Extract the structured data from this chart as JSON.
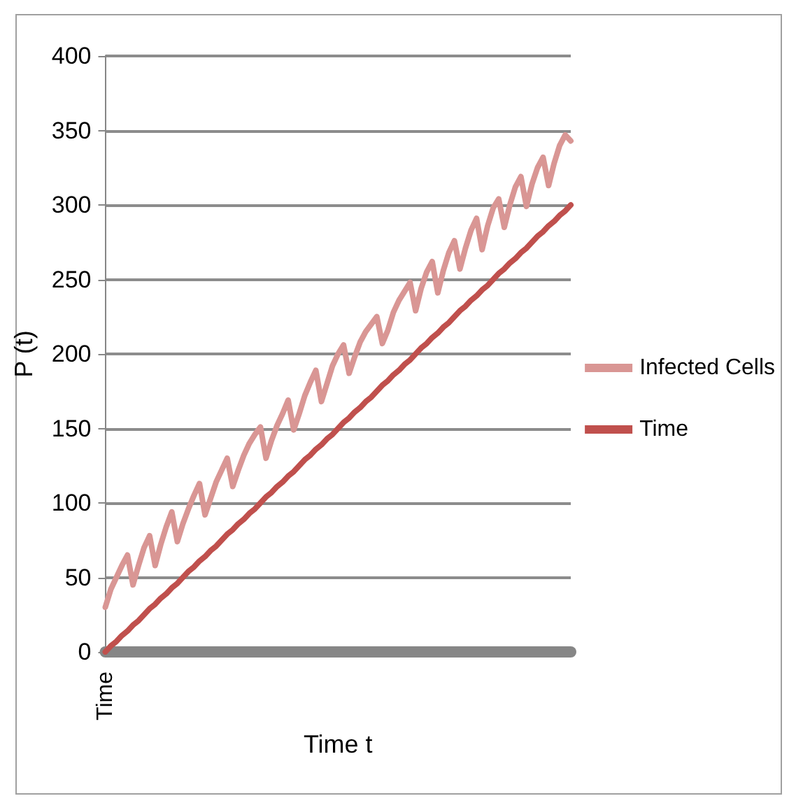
{
  "chart_data": {
    "type": "line",
    "xlabel": "Time t",
    "ylabel": "P (t)",
    "categories": [
      "Time",
      null,
      null,
      null,
      null,
      null,
      null,
      null,
      null,
      null,
      null,
      null,
      null,
      null,
      null,
      null,
      null,
      null,
      null,
      null,
      null,
      null,
      null,
      null,
      null,
      null,
      null,
      null,
      null,
      null,
      null,
      null,
      null,
      null,
      null,
      null,
      null,
      null,
      null,
      null,
      null,
      null,
      null,
      null,
      null,
      null,
      null,
      null,
      null,
      null,
      null,
      null,
      null,
      null,
      null,
      null,
      null,
      null,
      null,
      null,
      null,
      null,
      null,
      null,
      null,
      null,
      null,
      null,
      null,
      null,
      null,
      null,
      null,
      null,
      null,
      null,
      null,
      null,
      null,
      null,
      null,
      null,
      null,
      null,
      null
    ],
    "series": [
      {
        "name": "Infected Cells",
        "color": "#d99694",
        "values": [
          30,
          42,
          50,
          58,
          65,
          45,
          58,
          70,
          78,
          58,
          72,
          84,
          94,
          74,
          86,
          96,
          105,
          113,
          92,
          103,
          114,
          122,
          130,
          111,
          122,
          132,
          140,
          146,
          151,
          130,
          142,
          152,
          160,
          169,
          149,
          160,
          172,
          181,
          189,
          168,
          180,
          192,
          200,
          206,
          187,
          198,
          208,
          215,
          220,
          225,
          207,
          216,
          228,
          236,
          242,
          248,
          229,
          244,
          255,
          262,
          241,
          256,
          268,
          276,
          257,
          271,
          283,
          291,
          270,
          286,
          298,
          304,
          285,
          300,
          312,
          319,
          299,
          314,
          325,
          332,
          313,
          328,
          340,
          347,
          343
        ]
      },
      {
        "name": "Time",
        "color": "#c0504d",
        "values": [
          0,
          4,
          7,
          11,
          14,
          18,
          21,
          25,
          29,
          32,
          36,
          39,
          43,
          46,
          50,
          54,
          57,
          61,
          64,
          68,
          71,
          75,
          79,
          82,
          86,
          89,
          93,
          96,
          100,
          104,
          107,
          111,
          114,
          118,
          121,
          125,
          129,
          132,
          136,
          139,
          143,
          146,
          150,
          154,
          157,
          161,
          164,
          168,
          171,
          175,
          179,
          182,
          186,
          189,
          193,
          196,
          200,
          204,
          207,
          211,
          214,
          218,
          221,
          225,
          229,
          232,
          236,
          239,
          243,
          246,
          250,
          254,
          257,
          261,
          264,
          268,
          271,
          275,
          279,
          282,
          286,
          289,
          293,
          296,
          300
        ]
      }
    ],
    "ylim": [
      0,
      400
    ],
    "yticks": [
      0,
      50,
      100,
      150,
      200,
      250,
      300,
      350,
      400
    ],
    "grid": "y",
    "legend": "right",
    "marker": "none",
    "line_style": "solid"
  }
}
